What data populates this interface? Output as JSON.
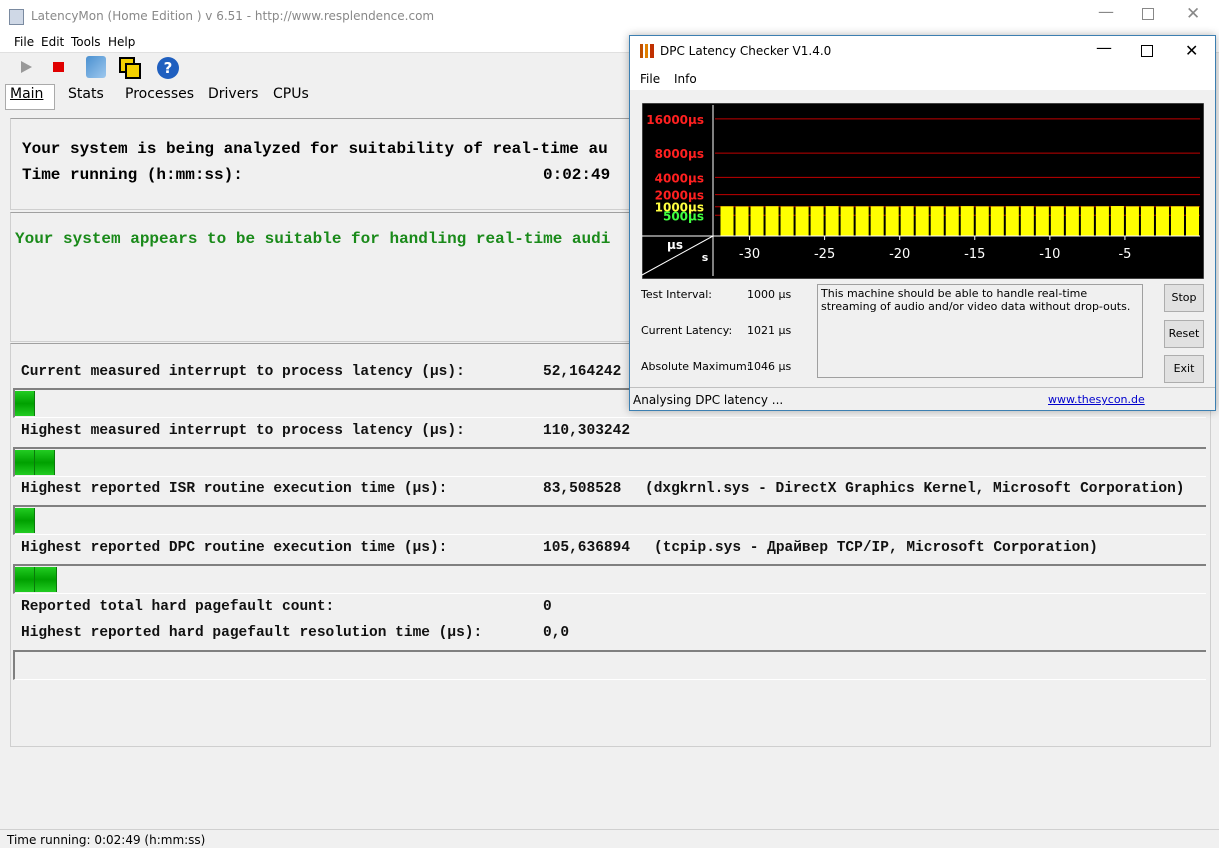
{
  "main_window": {
    "title": "LatencyMon  (Home Edition )  v 6.51 - http://www.resplendence.com",
    "menu": [
      "File",
      "Edit",
      "Tools",
      "Help"
    ],
    "tabs": [
      "Main",
      "Stats",
      "Processes",
      "Drivers",
      "CPUs"
    ],
    "analysis": {
      "heading": "Your system is being analyzed for suitability of real-time au",
      "time_label": "Time running (h:mm:ss):",
      "time_value": "0:02:49"
    },
    "verdict": "Your system appears to be suitable for handling real-time audi",
    "metrics": [
      {
        "label": "Current measured interrupt to process latency (µs):",
        "value": "52,164242"
      },
      {
        "label": "Highest measured interrupt to process latency (µs):",
        "value": "110,303242"
      },
      {
        "label": "Highest reported ISR routine execution time (µs):",
        "value": "83,508528",
        "detail": "(dxgkrnl.sys - DirectX Graphics Kernel, Microsoft Corporation)"
      },
      {
        "label": "Highest reported DPC routine execution time (µs):",
        "value": "105,636894",
        "detail": "(tcpip.sys - Драйвер TCP/IP, Microsoft Corporation)"
      },
      {
        "label": "Reported total hard pagefault count:",
        "value": "0"
      },
      {
        "label": "Highest reported hard pagefault resolution time (µs):",
        "value": "0,0"
      }
    ],
    "status": "Time running: 0:02:49  (h:mm:ss)"
  },
  "dpc_window": {
    "title": "DPC Latency Checker V1.4.0",
    "menu": [
      "File",
      "Info"
    ],
    "graph": {
      "type": "bar",
      "y_unit": "µs",
      "x_unit": "s",
      "scale": "sqrt",
      "ylim": [
        0,
        20000
      ],
      "yticks": [
        {
          "value": 16000,
          "label": "16000µs"
        },
        {
          "value": 8000,
          "label": "8000µs"
        },
        {
          "value": 4000,
          "label": "4000µs"
        },
        {
          "value": 2000,
          "label": "2000µs"
        },
        {
          "value": 1000,
          "label": "1000µs"
        },
        {
          "value": 500,
          "label": "500µs"
        }
      ],
      "xlim": [
        -32.3,
        0
      ],
      "xticks": [
        -30,
        -25,
        -20,
        -15,
        -10,
        -5
      ],
      "x": [
        -32,
        -31,
        -30,
        -29,
        -28,
        -27,
        -26,
        -25,
        -24,
        -23,
        -22,
        -21,
        -20,
        -19,
        -18,
        -17,
        -16,
        -15,
        -14,
        -13,
        -12,
        -11,
        -10,
        -9,
        -8,
        -7,
        -6,
        -5,
        -4,
        -3,
        -2,
        -1
      ],
      "values": [
        1030,
        1020,
        1025,
        1035,
        1020,
        1015,
        1030,
        1040,
        1020,
        1025,
        1030,
        1020,
        1035,
        1025,
        1030,
        1020,
        1040,
        1025,
        1020,
        1030,
        1035,
        1020,
        1030,
        1025,
        1020,
        1030,
        1046,
        1025,
        1030,
        1020,
        1030,
        1021
      ],
      "color": "#ffff00",
      "grid_color": "#c00000"
    },
    "info": [
      {
        "label": "Test Interval:",
        "value": "1000 µs"
      },
      {
        "label": "Current Latency:",
        "value": "1021 µs"
      },
      {
        "label": "Absolute Maximum:",
        "value": "1046 µs"
      }
    ],
    "message": "This machine should be able to handle real-time streaming of audio and/or video data without drop-outs.",
    "buttons": [
      "Stop",
      "Reset",
      "Exit"
    ],
    "status": "Analysing DPC latency ...",
    "link": "www.thesycon.de"
  }
}
